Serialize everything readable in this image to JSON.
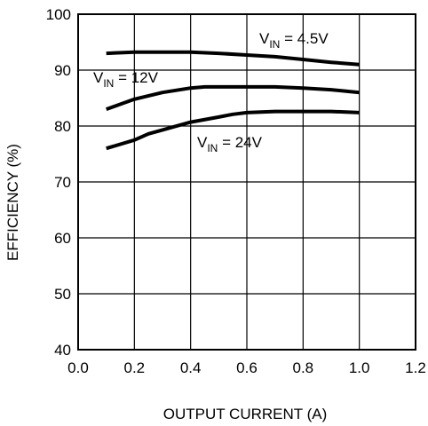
{
  "chart_data": {
    "type": "line",
    "xlabel": "OUTPUT CURRENT (A)",
    "ylabel": "EFFICIENCY (%)",
    "xlim": [
      0.0,
      1.2
    ],
    "ylim": [
      40,
      100
    ],
    "xticks": [
      "0.0",
      "0.2",
      "0.4",
      "0.6",
      "0.8",
      "1.0",
      "1.2"
    ],
    "yticks": [
      "40",
      "50",
      "60",
      "70",
      "80",
      "90",
      "100"
    ],
    "grid": true,
    "series": [
      {
        "label_main": "V",
        "label_sub": "IN",
        "label_rest": " = 4.5V",
        "x": [
          0.1,
          0.2,
          0.3,
          0.4,
          0.5,
          0.6,
          0.7,
          0.8,
          0.9,
          1.0
        ],
        "y": [
          93.0,
          93.2,
          93.2,
          93.2,
          93.0,
          92.7,
          92.4,
          91.9,
          91.4,
          91.0
        ]
      },
      {
        "label_main": "V",
        "label_sub": "IN",
        "label_rest": " = 12V",
        "x": [
          0.1,
          0.2,
          0.3,
          0.4,
          0.45,
          0.5,
          0.6,
          0.7,
          0.8,
          0.9,
          1.0
        ],
        "y": [
          83.0,
          84.8,
          86.0,
          86.8,
          87.0,
          87.0,
          87.0,
          87.0,
          86.8,
          86.5,
          86.0
        ]
      },
      {
        "label_main": "V",
        "label_sub": "IN",
        "label_rest": " = 24V",
        "x": [
          0.1,
          0.2,
          0.25,
          0.3,
          0.4,
          0.5,
          0.55,
          0.6,
          0.7,
          0.8,
          0.9,
          1.0
        ],
        "y": [
          76.0,
          77.5,
          78.6,
          79.3,
          80.7,
          81.6,
          82.1,
          82.4,
          82.6,
          82.6,
          82.6,
          82.4
        ]
      }
    ]
  }
}
